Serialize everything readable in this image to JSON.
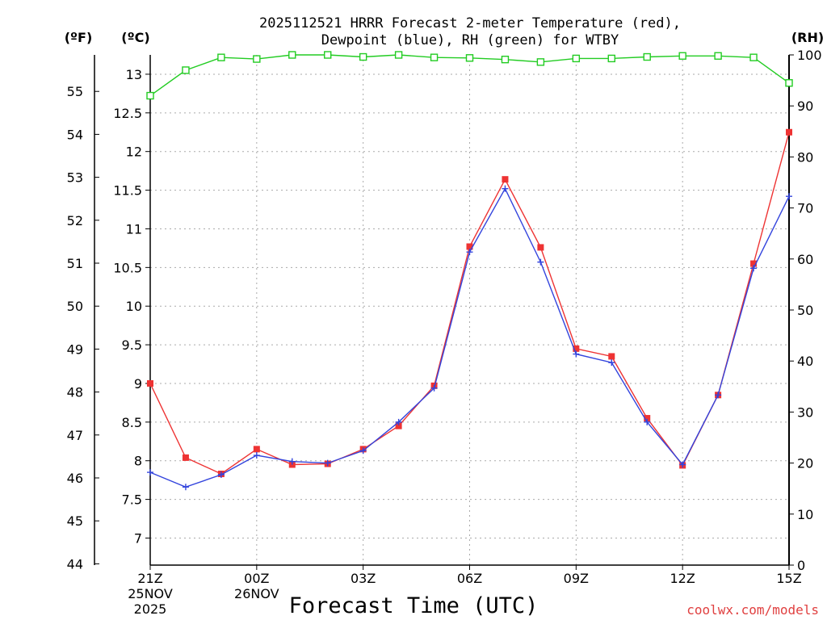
{
  "chart_data": {
    "type": "line",
    "title_line1": "2025112521 HRRR Forecast 2-meter Temperature (red),",
    "title_line2": "Dewpoint (blue), RH (green) for WTBY",
    "xlabel": "Forecast Time (UTC)",
    "left_unit_f": "(ºF)",
    "left_unit_c": "(ºC)",
    "right_unit": "(RH)",
    "credit": "coolwx.com/models",
    "xlim": [
      0,
      18
    ],
    "ylim_c": [
      6.65,
      13.25
    ],
    "ylim_rh": [
      0,
      100
    ],
    "fahrenheit_ticks": [
      "44",
      "45",
      "46",
      "47",
      "48",
      "49",
      "50",
      "51",
      "52",
      "53",
      "54",
      "55"
    ],
    "celsius_ticks": [
      "7",
      "7.5",
      "8",
      "8.5",
      "9",
      "9.5",
      "10",
      "10.5",
      "11",
      "11.5",
      "12",
      "12.5",
      "13"
    ],
    "rh_ticks": [
      "0",
      "10",
      "20",
      "30",
      "40",
      "50",
      "60",
      "70",
      "80",
      "90",
      "100"
    ],
    "x_ticks": [
      {
        "x": 0,
        "label": "21Z",
        "sub1": "25NOV",
        "sub2": "2025"
      },
      {
        "x": 3,
        "label": "00Z",
        "sub1": "26NOV",
        "sub2": ""
      },
      {
        "x": 6,
        "label": "03Z",
        "sub1": "",
        "sub2": ""
      },
      {
        "x": 9,
        "label": "06Z",
        "sub1": "",
        "sub2": ""
      },
      {
        "x": 12,
        "label": "09Z",
        "sub1": "",
        "sub2": ""
      },
      {
        "x": 15,
        "label": "12Z",
        "sub1": "",
        "sub2": ""
      },
      {
        "x": 18,
        "label": "15Z",
        "sub1": "",
        "sub2": ""
      }
    ],
    "series": [
      {
        "name": "Temperature",
        "color": "#ee3333",
        "axis": "c",
        "marker": "filled-square",
        "values": [
          9.0,
          8.04,
          7.83,
          8.15,
          7.95,
          7.96,
          8.15,
          8.45,
          8.97,
          10.77,
          11.64,
          10.76,
          9.45,
          9.35,
          8.55,
          7.94,
          8.85,
          10.55,
          12.25
        ]
      },
      {
        "name": "Dewpoint",
        "color": "#3344dd",
        "axis": "c",
        "marker": "plus",
        "values": [
          7.85,
          7.66,
          7.82,
          8.07,
          7.99,
          7.97,
          8.13,
          8.5,
          8.94,
          10.7,
          11.52,
          10.57,
          9.38,
          9.27,
          8.5,
          7.95,
          8.85,
          10.49,
          11.42
        ]
      },
      {
        "name": "RH",
        "color": "#22cc22",
        "axis": "rh",
        "marker": "open-square",
        "values": [
          92,
          97,
          99.5,
          99.2,
          100,
          100,
          99.6,
          100,
          99.5,
          99.4,
          99.1,
          98.6,
          99.3,
          99.3,
          99.6,
          99.8,
          99.8,
          99.5,
          94.5
        ]
      }
    ]
  }
}
